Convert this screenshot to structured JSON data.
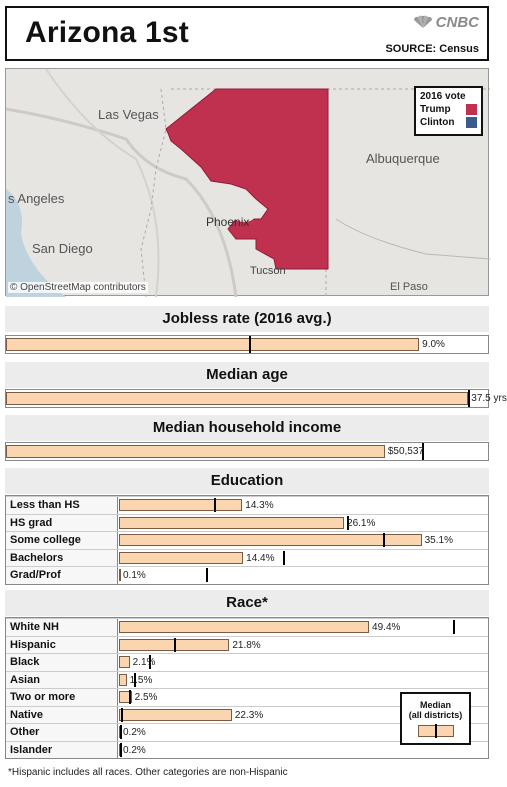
{
  "header": {
    "title": "Arizona 1st",
    "brand": "CNBC",
    "source": "SOURCE: Census"
  },
  "map": {
    "labels": {
      "las_vegas": "Las Vegas",
      "los_angeles": "s Angeles",
      "san_diego": "San Diego",
      "phoenix": "Phoenix",
      "tucson": "Tucson",
      "albuquerque": "Albuquerque",
      "el_paso": "El Paso"
    },
    "credit": "© OpenStreetMap contributors",
    "legend": {
      "title": "2016 vote",
      "items": [
        {
          "label": "Trump",
          "color": "#c0304f"
        },
        {
          "label": "Clinton",
          "color": "#3b5b8c"
        }
      ],
      "district_winner": "Trump"
    }
  },
  "colors": {
    "bar_fill": "#fbd4b0",
    "bar_stroke": "#7a5c45",
    "median_tick": "#000000",
    "section_bg": "#ececec"
  },
  "chart_data": [
    {
      "type": "bar",
      "title": "Jobless rate (2016 avg.)",
      "categories": [
        ""
      ],
      "values": [
        9.0
      ],
      "value_label": "9.0%",
      "median": 5.3,
      "xlim": [
        0,
        10.5
      ]
    },
    {
      "type": "bar",
      "title": "Median age",
      "categories": [
        ""
      ],
      "values": [
        37.5
      ],
      "value_label": "37.5 yrs",
      "median": 37.5,
      "xlim": [
        0,
        39.1
      ]
    },
    {
      "type": "bar",
      "title": "Median household income",
      "categories": [
        ""
      ],
      "values": [
        50537
      ],
      "value_label": "$50,537",
      "median": 55500,
      "xlim": [
        0,
        64300
      ]
    },
    {
      "type": "bar",
      "title": "Education",
      "categories": [
        "Less than HS",
        "HS grad",
        "Some college",
        "Bachelors",
        "Grad/Prof"
      ],
      "values": [
        14.3,
        26.1,
        35.1,
        14.4,
        0.1
      ],
      "value_labels": [
        "14.3%",
        "26.1%",
        "35.1%",
        "14.4%",
        "0.1%"
      ],
      "medians": [
        11.0,
        26.4,
        30.6,
        19.0,
        10.1
      ],
      "xlim": [
        0,
        42.8
      ]
    },
    {
      "type": "bar",
      "title": "Race*",
      "categories": [
        "White NH",
        "Hispanic",
        "Black",
        "Asian",
        "Two or more",
        "Native",
        "Other",
        "Islander"
      ],
      "values": [
        49.4,
        21.8,
        2.1,
        1.5,
        2.5,
        22.3,
        0.2,
        0.2
      ],
      "value_labels": [
        "49.4%",
        "21.8%",
        "2.1%",
        "1.5%",
        "2.5%",
        "22.3%",
        "0.2%",
        "0.2%"
      ],
      "medians": [
        66.0,
        10.8,
        5.9,
        2.9,
        2.0,
        0.3,
        0.2,
        0.1
      ],
      "xlim": [
        0,
        72.9
      ]
    }
  ],
  "median_key": {
    "title": "Median",
    "subtitle": "(all districts)"
  },
  "footnote": "*Hispanic includes all races. Other categories are non-Hispanic"
}
